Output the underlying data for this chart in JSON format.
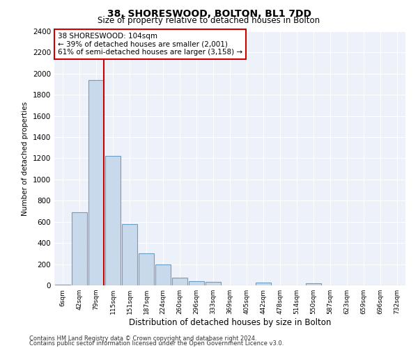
{
  "title": "38, SHORESWOOD, BOLTON, BL1 7DD",
  "subtitle": "Size of property relative to detached houses in Bolton",
  "xlabel": "Distribution of detached houses by size in Bolton",
  "ylabel": "Number of detached properties",
  "footnote1": "Contains HM Land Registry data © Crown copyright and database right 2024.",
  "footnote2": "Contains public sector information licensed under the Open Government Licence v3.0.",
  "annotation_title": "38 SHORESWOOD: 104sqm",
  "annotation_line1": "← 39% of detached houses are smaller (2,001)",
  "annotation_line2": "61% of semi-detached houses are larger (3,158) →",
  "bar_color": "#c9d9ec",
  "bar_edge_color": "#6a9ec5",
  "vline_color": "#cc0000",
  "categories": [
    "6sqm",
    "42sqm",
    "79sqm",
    "115sqm",
    "151sqm",
    "187sqm",
    "224sqm",
    "260sqm",
    "296sqm",
    "333sqm",
    "369sqm",
    "405sqm",
    "442sqm",
    "478sqm",
    "514sqm",
    "550sqm",
    "587sqm",
    "623sqm",
    "659sqm",
    "696sqm",
    "732sqm"
  ],
  "values": [
    5,
    690,
    1940,
    1220,
    580,
    300,
    195,
    75,
    40,
    30,
    0,
    0,
    25,
    0,
    0,
    20,
    0,
    0,
    0,
    0,
    0
  ],
  "ylim": [
    0,
    2400
  ],
  "yticks": [
    0,
    200,
    400,
    600,
    800,
    1000,
    1200,
    1400,
    1600,
    1800,
    2000,
    2200,
    2400
  ],
  "vline_index": 2.5,
  "plot_bg_color": "#edf1f9"
}
